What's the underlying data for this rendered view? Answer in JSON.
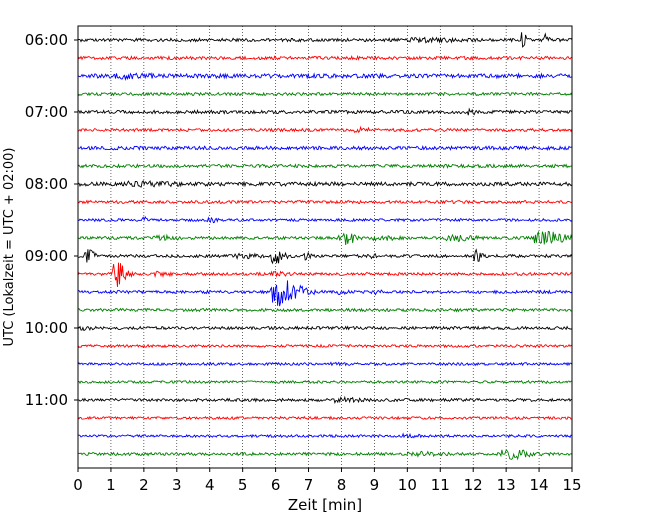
{
  "chart_data": {
    "type": "line",
    "subtype": "helicorder-seismogram",
    "title": "",
    "xlabel": "Zeit  [min]",
    "ylabel": "UTC (Lokalzeit = UTC + 02:00)",
    "xlim": [
      0,
      15
    ],
    "x_ticks": [
      "0",
      "1",
      "2",
      "3",
      "4",
      "5",
      "6",
      "7",
      "8",
      "9",
      "10",
      "11",
      "12",
      "13",
      "14",
      "15"
    ],
    "y_ticks": [
      "06:00",
      "07:00",
      "08:00",
      "09:00",
      "10:00",
      "11:00"
    ],
    "vertical_grid": "dotted",
    "trace_interval_minutes": 15,
    "trace_colors": [
      "#000000",
      "#ff0000",
      "#0000ff",
      "#008000"
    ],
    "traces": [
      {
        "start": "06:00",
        "color": "#000000",
        "noise": 1.0,
        "events": [
          {
            "x": 10.6,
            "amp": 1.2,
            "dur": 1.4
          },
          {
            "x": 13.5,
            "amp": 8,
            "dur": 0.15
          },
          {
            "x": 14.2,
            "amp": 6,
            "dur": 0.12
          }
        ]
      },
      {
        "start": "06:15",
        "color": "#ff0000",
        "noise": 1.0,
        "events": []
      },
      {
        "start": "06:30",
        "color": "#0000ff",
        "noise": 1.3,
        "events": [
          {
            "x": 1.5,
            "amp": 1.2,
            "dur": 1.5
          }
        ]
      },
      {
        "start": "06:45",
        "color": "#008000",
        "noise": 0.9,
        "events": []
      },
      {
        "start": "07:00",
        "color": "#000000",
        "noise": 1.0,
        "events": [
          {
            "x": 11.9,
            "amp": 3,
            "dur": 0.2
          }
        ]
      },
      {
        "start": "07:15",
        "color": "#ff0000",
        "noise": 0.9,
        "events": [
          {
            "x": 8.6,
            "amp": 1.5,
            "dur": 0.5
          }
        ]
      },
      {
        "start": "07:30",
        "color": "#0000ff",
        "noise": 1.1,
        "events": []
      },
      {
        "start": "07:45",
        "color": "#008000",
        "noise": 1.0,
        "events": []
      },
      {
        "start": "08:00",
        "color": "#000000",
        "noise": 1.2,
        "events": [
          {
            "x": 2.0,
            "amp": 1.2,
            "dur": 1.5
          }
        ]
      },
      {
        "start": "08:15",
        "color": "#ff0000",
        "noise": 0.9,
        "events": []
      },
      {
        "start": "08:30",
        "color": "#0000ff",
        "noise": 0.8,
        "events": [
          {
            "x": 2.0,
            "amp": 2.5,
            "dur": 0.2
          },
          {
            "x": 4.0,
            "amp": 2,
            "dur": 0.3
          }
        ]
      },
      {
        "start": "08:45",
        "color": "#008000",
        "noise": 0.9,
        "events": [
          {
            "x": 2.5,
            "amp": 1.5,
            "dur": 0.8
          },
          {
            "x": 8.1,
            "amp": 6,
            "dur": 0.5
          },
          {
            "x": 9.2,
            "amp": 2,
            "dur": 0.6
          },
          {
            "x": 11.5,
            "amp": 2,
            "dur": 0.8
          },
          {
            "x": 14.2,
            "amp": 6,
            "dur": 0.9
          }
        ]
      },
      {
        "start": "09:00",
        "color": "#000000",
        "noise": 0.9,
        "events": [
          {
            "x": 0.3,
            "amp": 6,
            "dur": 0.3
          },
          {
            "x": 5.0,
            "amp": 1.5,
            "dur": 0.8
          },
          {
            "x": 6.0,
            "amp": 7,
            "dur": 0.4
          },
          {
            "x": 6.9,
            "amp": 3,
            "dur": 0.2
          },
          {
            "x": 8.9,
            "amp": 1.5,
            "dur": 0.4
          },
          {
            "x": 12.1,
            "amp": 6,
            "dur": 0.3
          }
        ]
      },
      {
        "start": "09:15",
        "color": "#ff0000",
        "noise": 0.9,
        "events": [
          {
            "x": 1.2,
            "amp": 12,
            "dur": 0.4
          },
          {
            "x": 2.5,
            "amp": 1.5,
            "dur": 0.5
          },
          {
            "x": 6.0,
            "amp": 1.5,
            "dur": 0.5
          }
        ]
      },
      {
        "start": "09:30",
        "color": "#0000ff",
        "noise": 0.9,
        "events": [
          {
            "x": 6.2,
            "amp": 13,
            "dur": 0.9
          },
          {
            "x": 8.0,
            "amp": 2,
            "dur": 0.3
          },
          {
            "x": 9.0,
            "amp": 1.5,
            "dur": 0.3
          }
        ]
      },
      {
        "start": "09:45",
        "color": "#008000",
        "noise": 0.9,
        "events": []
      },
      {
        "start": "10:00",
        "color": "#000000",
        "noise": 0.9,
        "events": [
          {
            "x": 0.2,
            "amp": 1.5,
            "dur": 0.3
          }
        ]
      },
      {
        "start": "10:15",
        "color": "#ff0000",
        "noise": 0.8,
        "events": []
      },
      {
        "start": "10:30",
        "color": "#0000ff",
        "noise": 0.8,
        "events": [
          {
            "x": 7.8,
            "amp": 1.2,
            "dur": 0.4
          }
        ]
      },
      {
        "start": "10:45",
        "color": "#008000",
        "noise": 0.8,
        "events": []
      },
      {
        "start": "11:00",
        "color": "#000000",
        "noise": 0.9,
        "events": [
          {
            "x": 8.0,
            "amp": 1.5,
            "dur": 0.8
          }
        ]
      },
      {
        "start": "11:15",
        "color": "#ff0000",
        "noise": 0.8,
        "events": []
      },
      {
        "start": "11:30",
        "color": "#0000ff",
        "noise": 0.8,
        "events": [
          {
            "x": 10.0,
            "amp": 1.2,
            "dur": 0.5
          }
        ]
      },
      {
        "start": "11:45",
        "color": "#008000",
        "noise": 0.9,
        "events": [
          {
            "x": 10.3,
            "amp": 1.5,
            "dur": 0.8
          },
          {
            "x": 13.2,
            "amp": 4,
            "dur": 0.9
          }
        ]
      }
    ]
  }
}
